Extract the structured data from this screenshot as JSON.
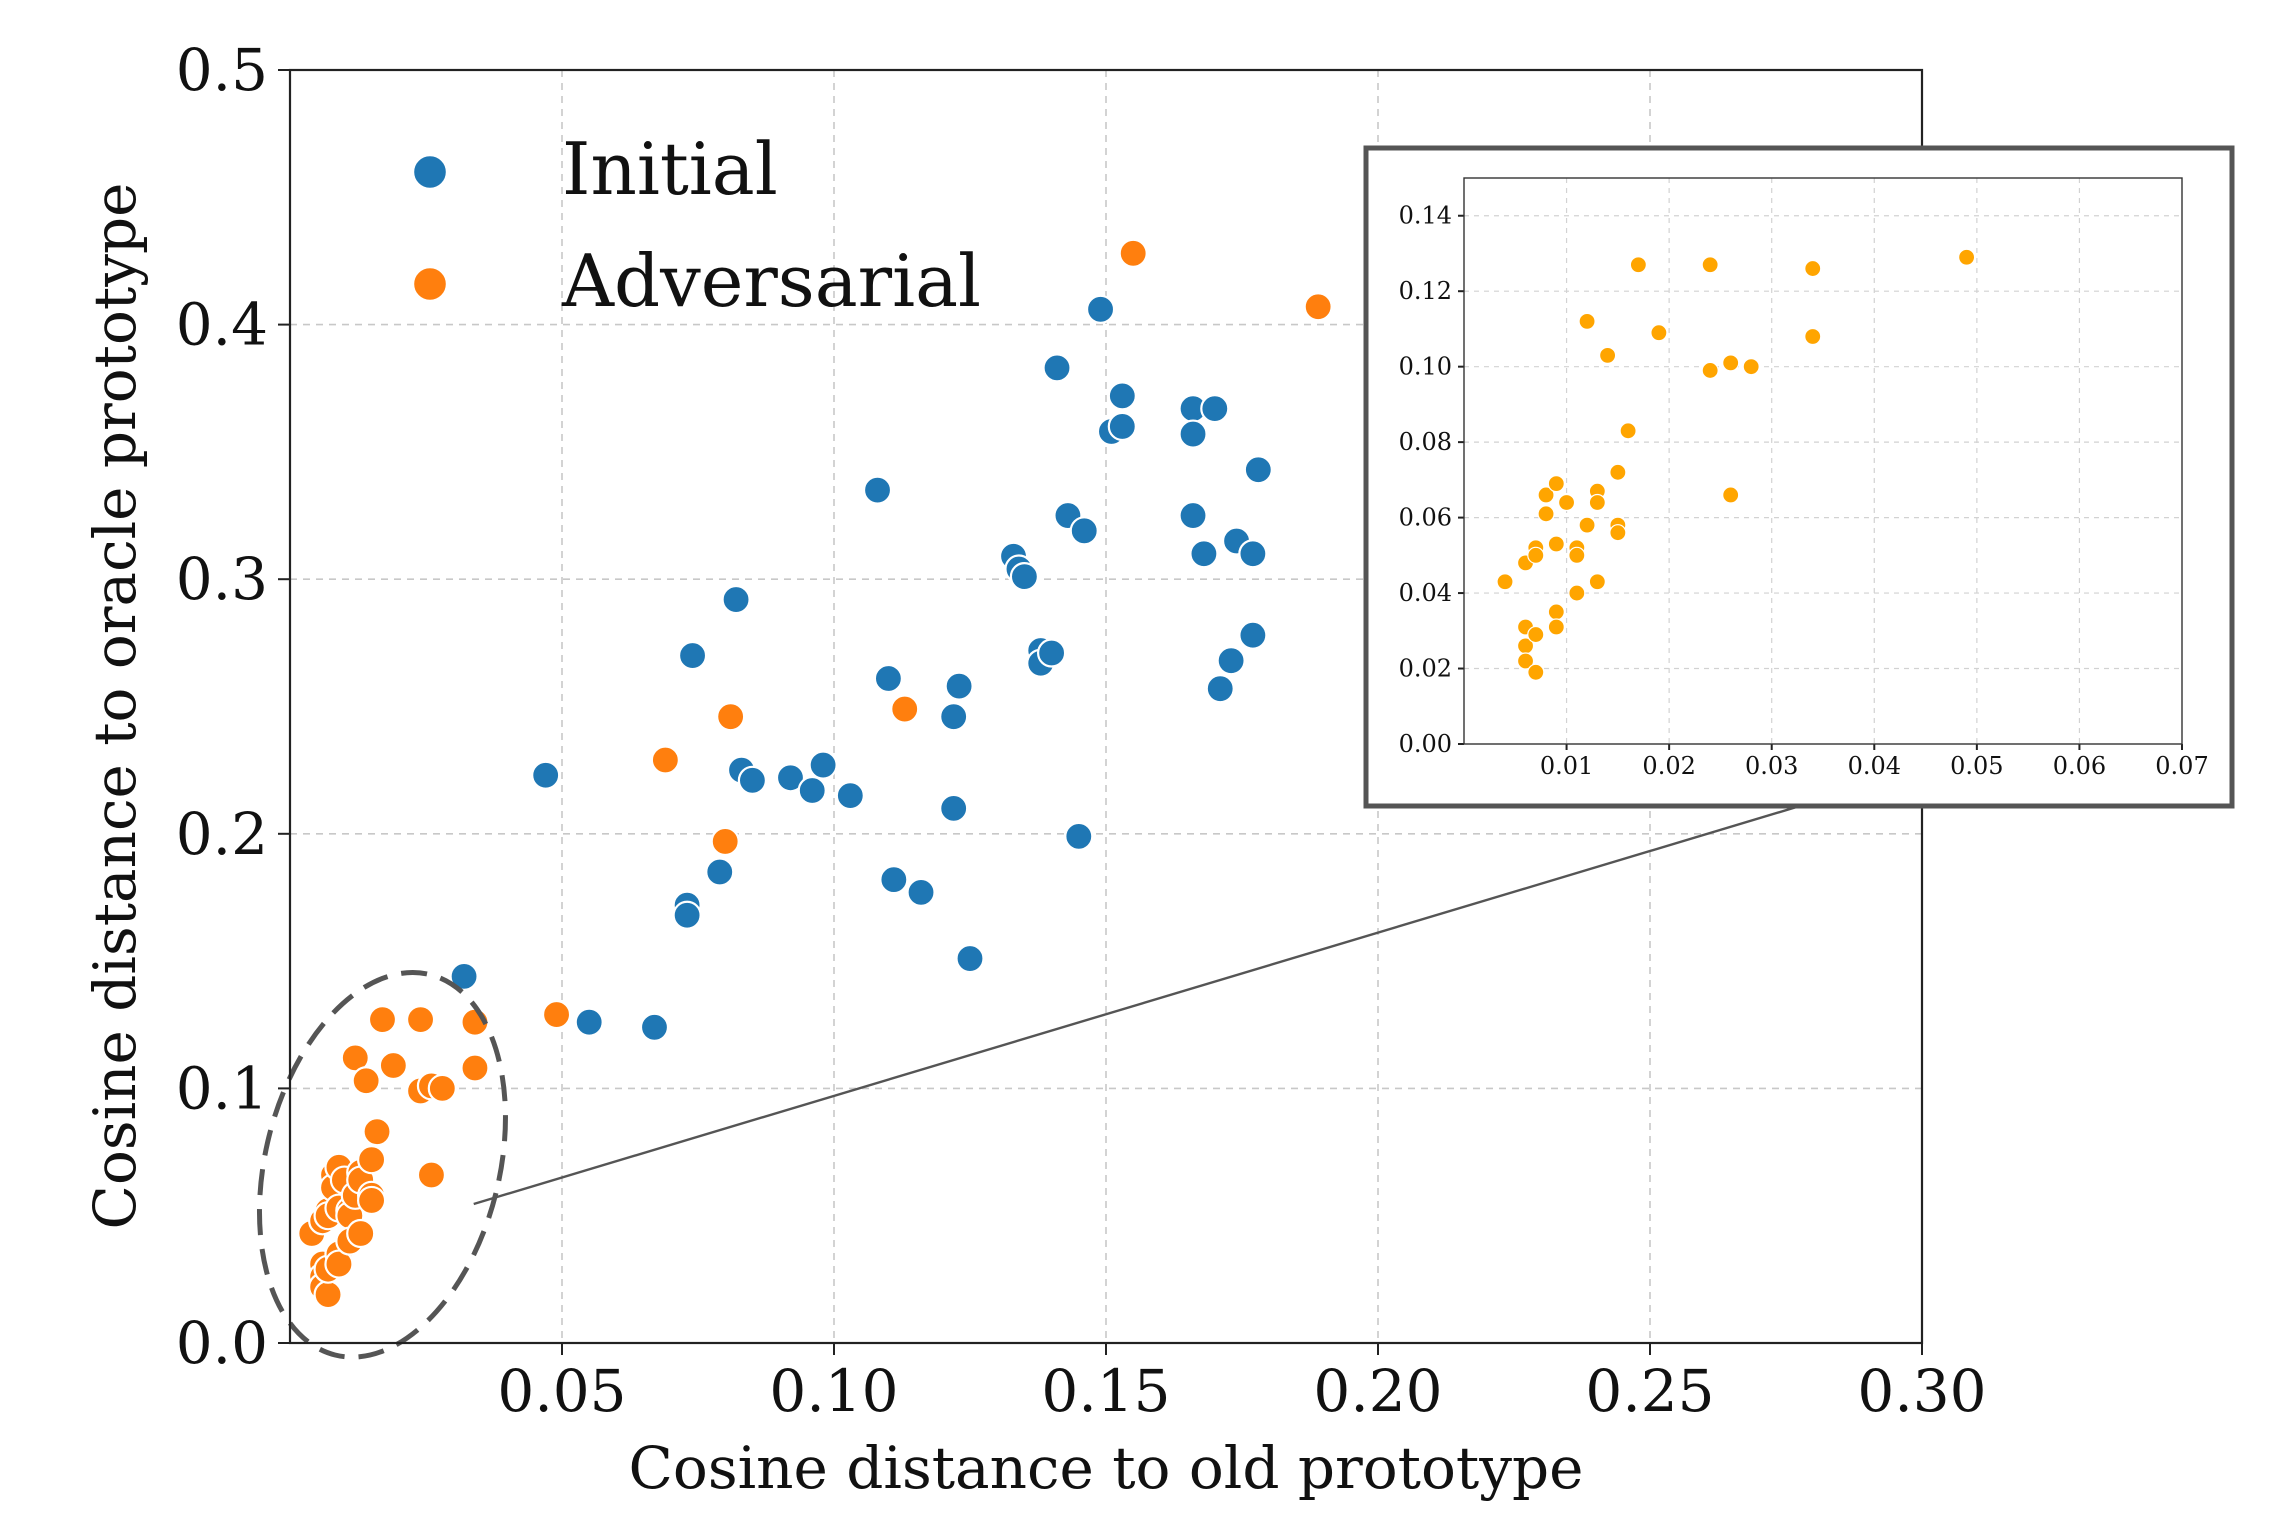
{
  "chart_data": {
    "type": "scatter",
    "xlabel": "Cosine distance to old prototype",
    "ylabel": "Cosine distance to oracle prototype",
    "xlim": [
      0.0,
      0.3
    ],
    "ylim": [
      0.0,
      0.5
    ],
    "xticks": [
      "0.05",
      "0.10",
      "0.15",
      "0.20",
      "0.25",
      "0.30"
    ],
    "xtick_values": [
      0.05,
      0.1,
      0.15,
      0.2,
      0.25,
      0.3
    ],
    "yticks": [
      "0.0",
      "0.1",
      "0.2",
      "0.3",
      "0.4",
      "0.5"
    ],
    "ytick_values": [
      0.0,
      0.1,
      0.2,
      0.3,
      0.4,
      0.5
    ],
    "grid": true,
    "legend_position": "top-left",
    "series": [
      {
        "name": "Initial",
        "color": "#1f77b4",
        "points": [
          [
            0.032,
            0.144
          ],
          [
            0.047,
            0.223
          ],
          [
            0.055,
            0.126
          ],
          [
            0.067,
            0.124
          ],
          [
            0.073,
            0.172
          ],
          [
            0.073,
            0.168
          ],
          [
            0.074,
            0.27
          ],
          [
            0.079,
            0.185
          ],
          [
            0.082,
            0.292
          ],
          [
            0.083,
            0.225
          ],
          [
            0.085,
            0.221
          ],
          [
            0.092,
            0.222
          ],
          [
            0.096,
            0.217
          ],
          [
            0.098,
            0.227
          ],
          [
            0.103,
            0.215
          ],
          [
            0.108,
            0.335
          ],
          [
            0.11,
            0.261
          ],
          [
            0.111,
            0.182
          ],
          [
            0.116,
            0.177
          ],
          [
            0.122,
            0.246
          ],
          [
            0.122,
            0.21
          ],
          [
            0.123,
            0.258
          ],
          [
            0.125,
            0.151
          ],
          [
            0.133,
            0.309
          ],
          [
            0.134,
            0.304
          ],
          [
            0.135,
            0.301
          ],
          [
            0.138,
            0.272
          ],
          [
            0.138,
            0.267
          ],
          [
            0.14,
            0.271
          ],
          [
            0.141,
            0.383
          ],
          [
            0.143,
            0.325
          ],
          [
            0.145,
            0.199
          ],
          [
            0.146,
            0.319
          ],
          [
            0.149,
            0.406
          ],
          [
            0.151,
            0.358
          ],
          [
            0.153,
            0.36
          ],
          [
            0.153,
            0.372
          ],
          [
            0.166,
            0.367
          ],
          [
            0.166,
            0.357
          ],
          [
            0.166,
            0.325
          ],
          [
            0.168,
            0.31
          ],
          [
            0.17,
            0.367
          ],
          [
            0.171,
            0.257
          ],
          [
            0.173,
            0.268
          ],
          [
            0.174,
            0.315
          ],
          [
            0.177,
            0.31
          ],
          [
            0.177,
            0.278
          ],
          [
            0.178,
            0.343
          ]
        ]
      },
      {
        "name": "Adversarial",
        "color": "#ff7f0e",
        "points": [
          [
            0.004,
            0.043
          ],
          [
            0.006,
            0.048
          ],
          [
            0.006,
            0.031
          ],
          [
            0.006,
            0.026
          ],
          [
            0.006,
            0.022
          ],
          [
            0.007,
            0.019
          ],
          [
            0.007,
            0.052
          ],
          [
            0.007,
            0.05
          ],
          [
            0.007,
            0.029
          ],
          [
            0.008,
            0.066
          ],
          [
            0.008,
            0.061
          ],
          [
            0.009,
            0.069
          ],
          [
            0.009,
            0.053
          ],
          [
            0.009,
            0.035
          ],
          [
            0.009,
            0.031
          ],
          [
            0.01,
            0.064
          ],
          [
            0.011,
            0.052
          ],
          [
            0.011,
            0.05
          ],
          [
            0.011,
            0.04
          ],
          [
            0.012,
            0.112
          ],
          [
            0.012,
            0.058
          ],
          [
            0.013,
            0.067
          ],
          [
            0.013,
            0.064
          ],
          [
            0.013,
            0.043
          ],
          [
            0.014,
            0.103
          ],
          [
            0.015,
            0.072
          ],
          [
            0.015,
            0.058
          ],
          [
            0.015,
            0.056
          ],
          [
            0.016,
            0.083
          ],
          [
            0.017,
            0.127
          ],
          [
            0.019,
            0.109
          ],
          [
            0.024,
            0.127
          ],
          [
            0.024,
            0.099
          ],
          [
            0.026,
            0.101
          ],
          [
            0.026,
            0.066
          ],
          [
            0.028,
            0.1
          ],
          [
            0.034,
            0.126
          ],
          [
            0.034,
            0.108
          ],
          [
            0.049,
            0.129
          ],
          [
            0.069,
            0.229
          ],
          [
            0.08,
            0.197
          ],
          [
            0.081,
            0.246
          ],
          [
            0.113,
            0.249
          ],
          [
            0.155,
            0.428
          ],
          [
            0.189,
            0.407
          ]
        ]
      }
    ],
    "inset": {
      "type": "scatter",
      "color": "#ffa500",
      "xlim": [
        0.0,
        0.07
      ],
      "ylim": [
        0.0,
        0.15
      ],
      "xticks": [
        "0.01",
        "0.02",
        "0.03",
        "0.04",
        "0.05",
        "0.06",
        "0.07"
      ],
      "xtick_values": [
        0.01,
        0.02,
        0.03,
        0.04,
        0.05,
        0.06,
        0.07
      ],
      "yticks": [
        "0.00",
        "0.02",
        "0.04",
        "0.06",
        "0.08",
        "0.10",
        "0.12",
        "0.14"
      ],
      "ytick_values": [
        0.0,
        0.02,
        0.04,
        0.06,
        0.08,
        0.1,
        0.12,
        0.14
      ],
      "grid": true,
      "points": [
        [
          0.004,
          0.043
        ],
        [
          0.006,
          0.048
        ],
        [
          0.006,
          0.031
        ],
        [
          0.006,
          0.026
        ],
        [
          0.006,
          0.022
        ],
        [
          0.007,
          0.019
        ],
        [
          0.007,
          0.052
        ],
        [
          0.007,
          0.05
        ],
        [
          0.007,
          0.029
        ],
        [
          0.008,
          0.066
        ],
        [
          0.008,
          0.061
        ],
        [
          0.009,
          0.069
        ],
        [
          0.009,
          0.053
        ],
        [
          0.009,
          0.035
        ],
        [
          0.009,
          0.031
        ],
        [
          0.01,
          0.064
        ],
        [
          0.011,
          0.052
        ],
        [
          0.011,
          0.05
        ],
        [
          0.011,
          0.04
        ],
        [
          0.012,
          0.112
        ],
        [
          0.012,
          0.058
        ],
        [
          0.013,
          0.067
        ],
        [
          0.013,
          0.064
        ],
        [
          0.013,
          0.043
        ],
        [
          0.014,
          0.103
        ],
        [
          0.015,
          0.072
        ],
        [
          0.015,
          0.058
        ],
        [
          0.015,
          0.056
        ],
        [
          0.016,
          0.083
        ],
        [
          0.017,
          0.127
        ],
        [
          0.019,
          0.109
        ],
        [
          0.024,
          0.127
        ],
        [
          0.024,
          0.099
        ],
        [
          0.026,
          0.101
        ],
        [
          0.026,
          0.066
        ],
        [
          0.028,
          0.1
        ],
        [
          0.034,
          0.126
        ],
        [
          0.034,
          0.108
        ],
        [
          0.049,
          0.129
        ]
      ]
    },
    "zoom_region": {
      "center": [
        0.017,
        0.07
      ],
      "x_radius": 0.0215,
      "y_radius": 0.077
    }
  }
}
